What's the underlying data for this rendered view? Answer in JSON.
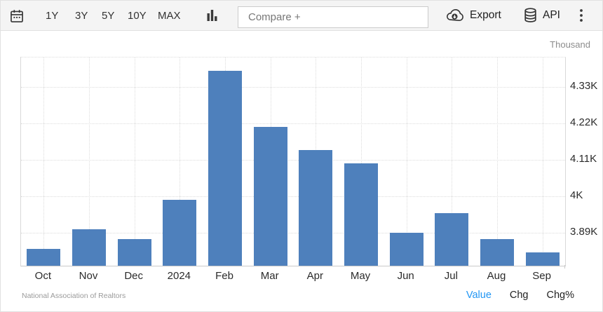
{
  "toolbar": {
    "calendar_icon": "calendar-range-icon",
    "range_buttons": [
      "1Y",
      "3Y",
      "5Y",
      "10Y",
      "MAX"
    ],
    "chart_type_icon": "column-chart-icon",
    "compare_placeholder": "Compare +",
    "export_label": "Export",
    "export_icon": "cloud-download-icon",
    "api_label": "API",
    "api_icon": "database-icon",
    "menu_icon": "kebab-menu-icon"
  },
  "chart": {
    "unit_label": "Thousand",
    "source": "National Association of Realtors",
    "footer_links": [
      {
        "label": "Value",
        "active": true
      },
      {
        "label": "Chg",
        "active": false
      },
      {
        "label": "Chg%",
        "active": false
      }
    ]
  },
  "chart_data": {
    "type": "bar",
    "title": "",
    "xlabel": "",
    "ylabel": "Thousand",
    "categories": [
      "Oct",
      "Nov",
      "Dec",
      "2024",
      "Feb",
      "Mar",
      "Apr",
      "May",
      "Jun",
      "Jul",
      "Aug",
      "Sep"
    ],
    "values": [
      3.84,
      3.9,
      3.87,
      3.99,
      4.38,
      4.21,
      4.14,
      4.1,
      3.89,
      3.95,
      3.87,
      3.83
    ],
    "unit": "Thousand",
    "yticks": [
      3.89,
      4.0,
      4.11,
      4.22,
      4.33
    ],
    "ytick_labels": [
      "3.89K",
      "4K",
      "4.11K",
      "4.22K",
      "4.33K"
    ],
    "ylim": [
      3.79,
      4.42
    ],
    "grid": "dotted",
    "legend": "none",
    "bar_color": "#4e80bc",
    "source": "National Association of Realtors"
  },
  "colors": {
    "accent_blue": "#2196f3",
    "bar": "#4e80bc",
    "toolbar_bg": "#f4f4f4",
    "border": "#e1e1e1",
    "text_dark": "#2b2b2b",
    "text_muted": "#9a9a9a"
  }
}
